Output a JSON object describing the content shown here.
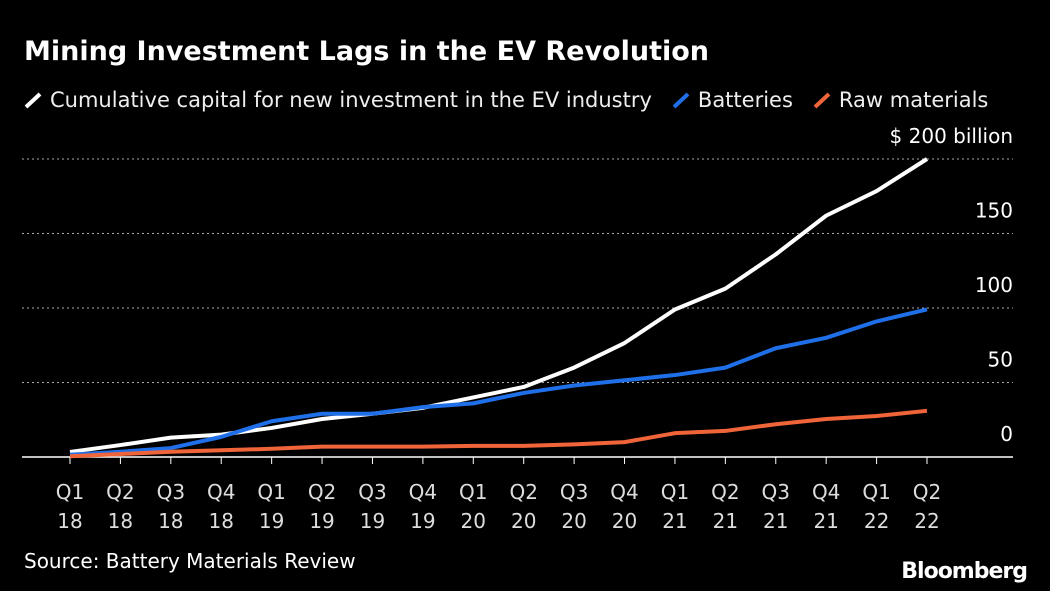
{
  "chart_data": {
    "type": "line",
    "title": "Mining Investment Lags in the EV Revolution",
    "categories": [
      "Q1 18",
      "Q2 18",
      "Q3 18",
      "Q4 18",
      "Q1 19",
      "Q2 19",
      "Q3 19",
      "Q4 19",
      "Q1 20",
      "Q2 20",
      "Q3 20",
      "Q4 20",
      "Q1 21",
      "Q2 21",
      "Q3 21",
      "Q4 21",
      "Q1 22",
      "Q2 22"
    ],
    "series": [
      {
        "name": "Cumulative capital for new investment in the EV industry",
        "color": "#ffffff",
        "values": [
          3.4,
          8,
          13,
          15,
          19.5,
          25.5,
          29,
          33,
          40,
          47,
          60,
          76.5,
          99,
          113,
          136,
          162,
          178.5,
          200
        ]
      },
      {
        "name": "Batteries",
        "color": "#1f6fe8",
        "values": [
          1.5,
          3.5,
          6,
          13.5,
          24,
          29,
          29,
          33.5,
          36,
          43,
          48,
          51.5,
          55,
          60,
          73,
          80,
          91,
          99
        ]
      },
      {
        "name": "Raw materials",
        "color": "#f0643a",
        "values": [
          0.5,
          2,
          3.5,
          4.5,
          5.5,
          7,
          7,
          7,
          7.5,
          7.5,
          8.5,
          10,
          16,
          17.5,
          22,
          25.5,
          27.5,
          31
        ]
      }
    ],
    "ylim": [
      0,
      200
    ],
    "yticks": [
      0,
      50,
      100,
      150,
      {
        "value": 200,
        "label": "$ 200 billion"
      }
    ],
    "grid": true,
    "source": "Source: Battery Materials Review",
    "logo": "Bloomberg"
  }
}
